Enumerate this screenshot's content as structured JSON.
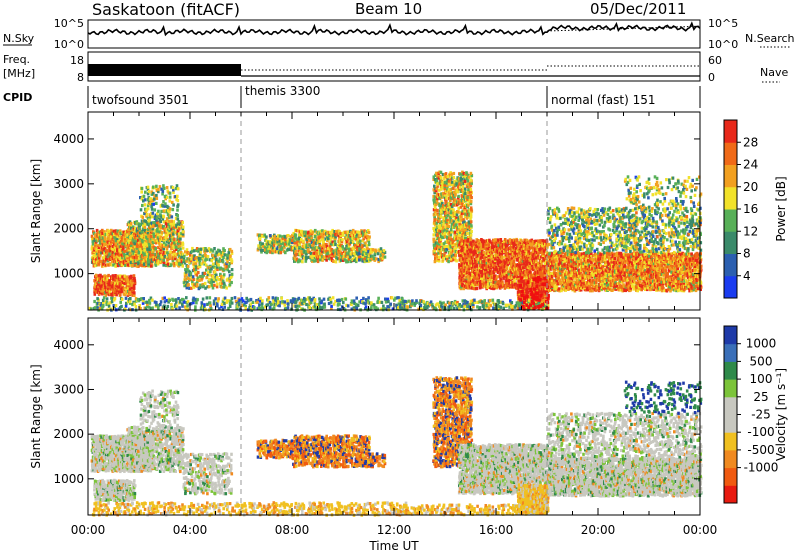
{
  "header": {
    "station": "Saskatoon (fitACF)",
    "beam": "Beam 10",
    "date": "05/Dec/2011"
  },
  "colors": {
    "power": [
      "#1a3cf0",
      "#2b5fb0",
      "#3a8a6a",
      "#58b058",
      "#f2e22a",
      "#f2a020",
      "#f06a18",
      "#e8281a"
    ],
    "velocity": [
      "#1e3aa8",
      "#3a6fb8",
      "#2f8a4a",
      "#7cc43a",
      "#c8c8c0",
      "#c8c8c0",
      "#f0c020",
      "#f08a20",
      "#f05a10",
      "#e81a10"
    ],
    "scan_ground": "#c8c8c0",
    "grid_dash": "#9a9a9a"
  },
  "strips": {
    "nsky": {
      "left_label": "N.Sky",
      "left_ticks": [
        "10^5",
        "10^0"
      ],
      "right_ticks": [
        "10^5",
        "10^0"
      ],
      "right_label": "N.Search"
    },
    "freq": {
      "left_label": "Freq.",
      "left_unit": "[MHz]",
      "left_ticks": [
        "18",
        "8"
      ],
      "right_ticks": [
        "60",
        "0"
      ],
      "right_label": "Nave"
    },
    "cpid": {
      "label": "CPID",
      "modes": [
        "twofsound 3501",
        "themis 3300",
        "normal (fast) 151"
      ]
    }
  },
  "chart_data": [
    {
      "type": "heatmap",
      "name": "power",
      "ylabel": "Slant Range [km]",
      "yticks": [
        "1000",
        "2000",
        "3000",
        "4000"
      ],
      "ylim": [
        190,
        4600
      ],
      "xlim": [
        0,
        24
      ],
      "colorbar": {
        "label": "Power [dB]",
        "ticks": [
          "4",
          "8",
          "12",
          "16",
          "20",
          "24",
          "28"
        ],
        "range": [
          0,
          32
        ]
      },
      "mode_boundaries_hours": [
        6,
        18
      ]
    },
    {
      "type": "heatmap",
      "name": "velocity",
      "ylabel": "Slant Range [km]",
      "yticks": [
        "1000",
        "2000",
        "3000",
        "4000"
      ],
      "ylim": [
        190,
        4600
      ],
      "xlim": [
        0,
        24
      ],
      "colorbar": {
        "label": "Velocity [m s⁻¹]",
        "ticks": [
          "1000",
          "500",
          "100",
          "25",
          "-25",
          "-100",
          "-500",
          "-1000"
        ]
      },
      "xlabel": "Time UT",
      "xticks": [
        "00:00",
        "04:00",
        "08:00",
        "12:00",
        "16:00",
        "20:00",
        "00:00"
      ],
      "mode_boundaries_hours": [
        6,
        18
      ]
    }
  ]
}
